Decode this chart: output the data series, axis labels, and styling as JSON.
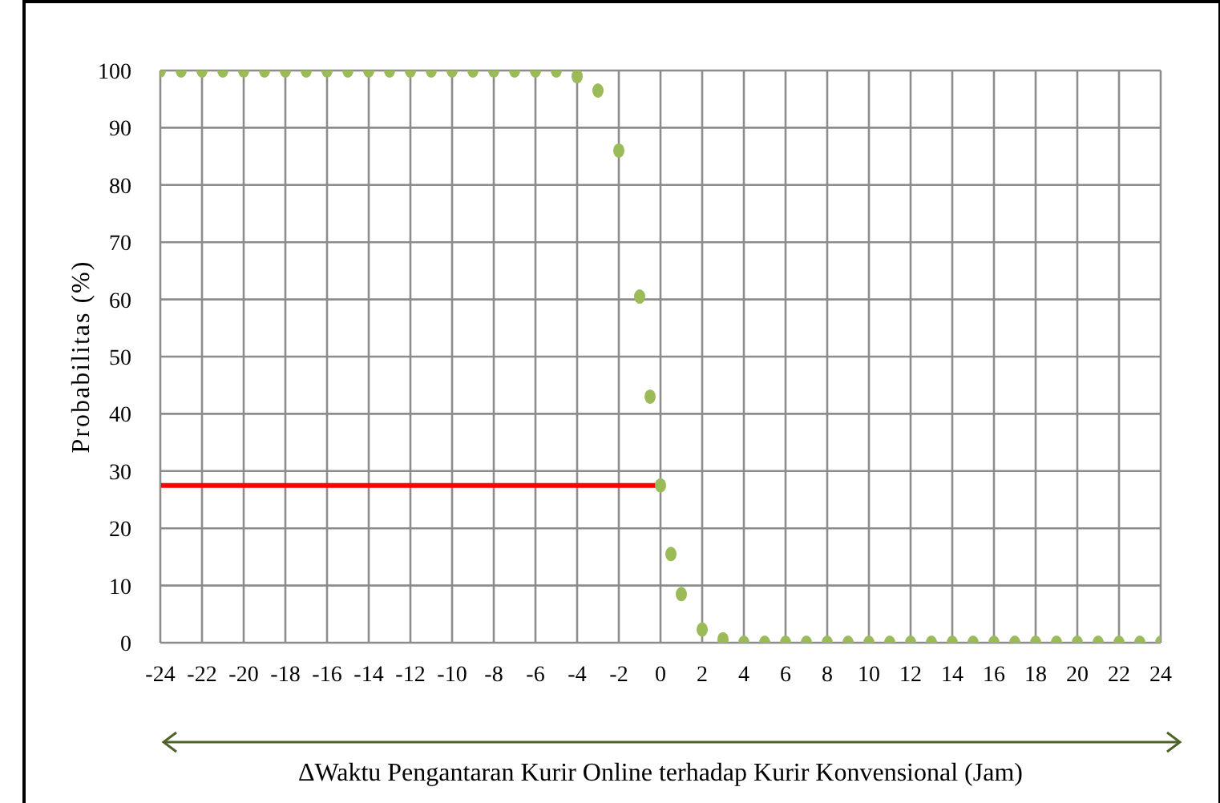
{
  "chart_data": {
    "type": "scatter",
    "xlabel": "ΔWaktu Pengantaran Kurir Online terhadap Kurir Konvensional (Jam)",
    "ylabel": "Probabilitas (%)",
    "xlim": [
      -24,
      24
    ],
    "xticks": [
      -24,
      -22,
      -20,
      -18,
      -16,
      -14,
      -12,
      -10,
      -8,
      -6,
      -4,
      -2,
      0,
      2,
      4,
      6,
      8,
      10,
      12,
      14,
      16,
      18,
      20,
      22,
      24
    ],
    "ylim": [
      0,
      100
    ],
    "yticks": [
      0,
      10,
      20,
      30,
      40,
      50,
      60,
      70,
      80,
      90,
      100
    ],
    "grid": true,
    "legend": false,
    "marker": "circle",
    "series": [
      {
        "color": "#9bbb59",
        "x": [
          -24,
          -23,
          -22,
          -21,
          -20,
          -19,
          -18,
          -17,
          -16,
          -15,
          -14,
          -13,
          -12,
          -11,
          -10,
          -9,
          -8,
          -7,
          -6,
          -5,
          -4,
          -3,
          -2,
          -1,
          -0.5,
          0,
          0.5,
          1,
          2,
          3,
          4,
          5,
          6,
          7,
          8,
          9,
          10,
          11,
          12,
          13,
          14,
          15,
          16,
          17,
          18,
          19,
          20,
          21,
          22,
          23,
          24
        ],
        "values": [
          100,
          100,
          100,
          100,
          100,
          100,
          100,
          100,
          100,
          100,
          100,
          100,
          100,
          100,
          100,
          100,
          100,
          100,
          100,
          100,
          99,
          96.5,
          86,
          60.5,
          43,
          27.5,
          15.5,
          8.5,
          2.3,
          0.6,
          0,
          0,
          0,
          0,
          0,
          0,
          0,
          0,
          0,
          0,
          0,
          0,
          0,
          0,
          0,
          0,
          0,
          0,
          0,
          0,
          0
        ]
      },
      {
        "type": "line",
        "color": "#ff0000",
        "marker": "none",
        "x": [
          -24,
          0
        ],
        "values": [
          27.5,
          27.5
        ]
      }
    ]
  }
}
